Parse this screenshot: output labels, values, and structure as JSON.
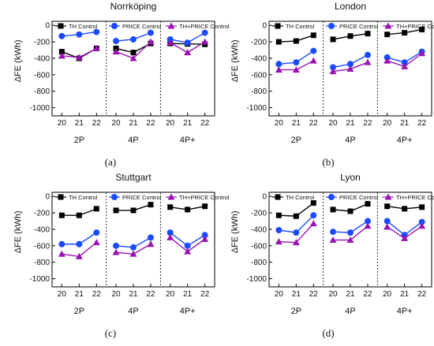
{
  "legend_labels": [
    "TH Control",
    "PRICE Control",
    "TH+PRICE Control"
  ],
  "colors": {
    "TH Control": "#000000",
    "PRICE Control": "#1a4bff",
    "TH+PRICE Control": "#9a12b3"
  },
  "marker_shapes": {
    "TH Control": "square",
    "PRICE Control": "circle",
    "TH+PRICE Control": "triangle"
  },
  "captions": [
    "(a)",
    "(b)",
    "(c)",
    "(d)"
  ],
  "chart_data": [
    {
      "type": "line",
      "title": "Norrköping",
      "ylabel": "ΔFE (kWh)",
      "ylim": [
        -1100,
        50
      ],
      "yticks": [
        0,
        -200,
        -400,
        -600,
        -800,
        -1000
      ],
      "x_tick_labels": [
        "20",
        "21",
        "22"
      ],
      "groups": [
        "2P",
        "4P",
        "4P+"
      ],
      "grid": false,
      "legend_position": "top",
      "series": [
        {
          "name": "TH Control",
          "groups": [
            [
              -320,
              -400,
              -280
            ],
            [
              -280,
              -330,
              -220
            ],
            [
              -220,
              -225,
              -230
            ]
          ]
        },
        {
          "name": "PRICE Control",
          "groups": [
            [
              -130,
              -110,
              -80
            ],
            [
              -190,
              -170,
              -90
            ],
            [
              -170,
              -210,
              -90
            ]
          ]
        },
        {
          "name": "TH+PRICE Control",
          "groups": [
            [
              -370,
              -390,
              -280
            ],
            [
              -320,
              -400,
              -200
            ],
            [
              -210,
              -330,
              -200
            ]
          ]
        }
      ]
    },
    {
      "type": "line",
      "title": "London",
      "ylabel": "ΔFE (kWh)",
      "ylim": [
        -1100,
        50
      ],
      "yticks": [
        0,
        -200,
        -400,
        -600,
        -800,
        -1000
      ],
      "x_tick_labels": [
        "20",
        "21",
        "22"
      ],
      "groups": [
        "2P",
        "4P",
        "4P+"
      ],
      "grid": false,
      "legend_position": "top",
      "series": [
        {
          "name": "TH Control",
          "groups": [
            [
              -200,
              -190,
              -120
            ],
            [
              -170,
              -130,
              -100
            ],
            [
              -110,
              -90,
              -50
            ]
          ]
        },
        {
          "name": "PRICE Control",
          "groups": [
            [
              -470,
              -450,
              -310
            ],
            [
              -510,
              -470,
              -360
            ],
            [
              -390,
              -450,
              -320
            ]
          ]
        },
        {
          "name": "TH+PRICE Control",
          "groups": [
            [
              -540,
              -540,
              -430
            ],
            [
              -560,
              -530,
              -450
            ],
            [
              -430,
              -500,
              -340
            ]
          ]
        }
      ]
    },
    {
      "type": "line",
      "title": "Stuttgart",
      "ylabel": "ΔFE (kWh)",
      "ylim": [
        -1100,
        50
      ],
      "yticks": [
        0,
        -200,
        -400,
        -600,
        -800,
        -1000
      ],
      "x_tick_labels": [
        "20",
        "21",
        "22"
      ],
      "groups": [
        "2P",
        "4P",
        "4P+"
      ],
      "grid": false,
      "legend_position": "top",
      "series": [
        {
          "name": "TH Control",
          "groups": [
            [
              -230,
              -230,
              -150
            ],
            [
              -170,
              -170,
              -100
            ],
            [
              -130,
              -160,
              -120
            ]
          ]
        },
        {
          "name": "PRICE Control",
          "groups": [
            [
              -580,
              -580,
              -440
            ],
            [
              -600,
              -620,
              -500
            ],
            [
              -440,
              -600,
              -470
            ]
          ]
        },
        {
          "name": "TH+PRICE Control",
          "groups": [
            [
              -700,
              -730,
              -560
            ],
            [
              -680,
              -700,
              -580
            ],
            [
              -500,
              -670,
              -520
            ]
          ]
        }
      ]
    },
    {
      "type": "line",
      "title": "Lyon",
      "ylabel": "ΔFE (kWh)",
      "ylim": [
        -1100,
        50
      ],
      "yticks": [
        0,
        -200,
        -400,
        -600,
        -800,
        -1000
      ],
      "x_tick_labels": [
        "20",
        "21",
        "22"
      ],
      "groups": [
        "2P",
        "4P",
        "4P+"
      ],
      "grid": false,
      "legend_position": "top",
      "series": [
        {
          "name": "TH Control",
          "groups": [
            [
              -230,
              -240,
              -80
            ],
            [
              -160,
              -180,
              -90
            ],
            [
              -120,
              -150,
              -130
            ]
          ]
        },
        {
          "name": "PRICE Control",
          "groups": [
            [
              -410,
              -440,
              -230
            ],
            [
              -430,
              -440,
              -300
            ],
            [
              -300,
              -470,
              -310
            ]
          ]
        },
        {
          "name": "TH+PRICE Control",
          "groups": [
            [
              -550,
              -560,
              -330
            ],
            [
              -530,
              -530,
              -360
            ],
            [
              -370,
              -510,
              -360
            ]
          ]
        }
      ]
    }
  ]
}
